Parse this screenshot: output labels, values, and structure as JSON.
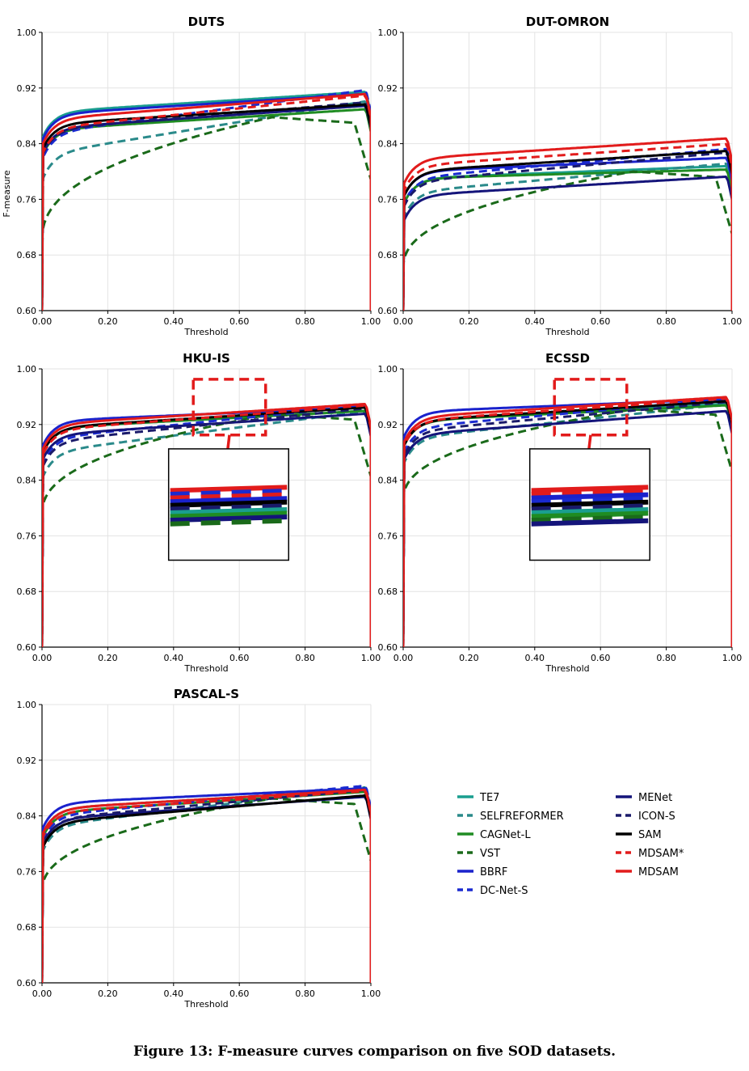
{
  "caption": "Figure 13: F-measure curves comparison on five SOD datasets.",
  "chart_data": {
    "type": "line",
    "xlabel": "Threshold",
    "ylabel": "F-measure",
    "xlim": [
      0,
      1
    ],
    "ylim": [
      0.6,
      1.0
    ],
    "xticks": [
      "0.00",
      "0.20",
      "0.40",
      "0.60",
      "0.80",
      "1.00"
    ],
    "yticks": [
      "0.60",
      "0.68",
      "0.76",
      "0.84",
      "0.92",
      "1.00"
    ],
    "grid": true,
    "methods": [
      {
        "name": "TE7",
        "color": "#1a9e8f",
        "dashed": false
      },
      {
        "name": "SELFREFORMER",
        "color": "#2a8a8a",
        "dashed": true
      },
      {
        "name": "CAGNet-L",
        "color": "#1f8c22",
        "dashed": false
      },
      {
        "name": "VST",
        "color": "#1a6a1a",
        "dashed": true
      },
      {
        "name": "BBRF",
        "color": "#1a22cc",
        "dashed": false
      },
      {
        "name": "DC-Net-S",
        "color": "#1a2ad0",
        "dashed": true
      },
      {
        "name": "MENet",
        "color": "#14147a",
        "dashed": false
      },
      {
        "name": "ICON-S",
        "color": "#1a1a6a",
        "dashed": true
      },
      {
        "name": "SAM",
        "color": "#000000",
        "dashed": false
      },
      {
        "name": "MDSAM*",
        "color": "#e21b1b",
        "dashed": true
      },
      {
        "name": "MDSAM",
        "color": "#e21b1b",
        "dashed": false
      }
    ],
    "panels": [
      {
        "title": "DUTS",
        "series": [
          {
            "name": "TE7",
            "start": 0.885,
            "end": 0.915
          },
          {
            "name": "SELFREFORMER",
            "start": 0.825,
            "end": 0.902
          },
          {
            "name": "CAGNet-L",
            "start": 0.86,
            "end": 0.89
          },
          {
            "name": "VST",
            "start": 0.7,
            "peak": 0.878
          },
          {
            "name": "BBRF",
            "start": 0.882,
            "end": 0.912
          },
          {
            "name": "DC-Net-S",
            "start": 0.855,
            "end": 0.918
          },
          {
            "name": "MENet",
            "start": 0.862,
            "end": 0.895
          },
          {
            "name": "ICON-S",
            "start": 0.86,
            "end": 0.9
          },
          {
            "name": "SAM",
            "start": 0.868,
            "end": 0.897
          },
          {
            "name": "MDSAM*",
            "start": 0.862,
            "end": 0.91
          },
          {
            "name": "MDSAM",
            "start": 0.875,
            "end": 0.912
          }
        ]
      },
      {
        "title": "DUT-OMRON",
        "series": [
          {
            "name": "TE7",
            "start": 0.79,
            "end": 0.808
          },
          {
            "name": "SELFREFORMER",
            "start": 0.77,
            "end": 0.812
          },
          {
            "name": "CAGNet-L",
            "start": 0.79,
            "end": 0.803
          },
          {
            "name": "VST",
            "start": 0.66,
            "peak": 0.8
          },
          {
            "name": "BBRF",
            "start": 0.8,
            "end": 0.82
          },
          {
            "name": "DC-Net-S",
            "start": 0.79,
            "end": 0.833
          },
          {
            "name": "MENet",
            "start": 0.765,
            "end": 0.793
          },
          {
            "name": "ICON-S",
            "start": 0.785,
            "end": 0.828
          },
          {
            "name": "SAM",
            "start": 0.8,
            "end": 0.83
          },
          {
            "name": "MDSAM*",
            "start": 0.808,
            "end": 0.84
          },
          {
            "name": "MDSAM",
            "start": 0.818,
            "end": 0.848
          }
        ]
      },
      {
        "title": "HKU-IS",
        "series": [
          {
            "name": "TE7",
            "start": 0.915,
            "end": 0.94
          },
          {
            "name": "SELFREFORMER",
            "start": 0.88,
            "end": 0.94
          },
          {
            "name": "CAGNet-L",
            "start": 0.915,
            "end": 0.94
          },
          {
            "name": "VST",
            "start": 0.79,
            "peak": 0.935
          },
          {
            "name": "BBRF",
            "start": 0.925,
            "end": 0.945
          },
          {
            "name": "DC-Net-S",
            "start": 0.9,
            "end": 0.948
          },
          {
            "name": "MENet",
            "start": 0.905,
            "end": 0.936
          },
          {
            "name": "ICON-S",
            "start": 0.895,
            "end": 0.944
          },
          {
            "name": "SAM",
            "start": 0.915,
            "end": 0.945
          },
          {
            "name": "MDSAM*",
            "start": 0.912,
            "end": 0.948
          },
          {
            "name": "MDSAM",
            "start": 0.92,
            "end": 0.95
          }
        ],
        "zoom_box": true
      },
      {
        "title": "ECSSD",
        "series": [
          {
            "name": "TE7",
            "start": 0.925,
            "end": 0.95
          },
          {
            "name": "SELFREFORMER",
            "start": 0.9,
            "end": 0.95
          },
          {
            "name": "CAGNet-L",
            "start": 0.925,
            "end": 0.948
          },
          {
            "name": "VST",
            "start": 0.81,
            "peak": 0.942
          },
          {
            "name": "BBRF",
            "start": 0.938,
            "end": 0.957
          },
          {
            "name": "DC-Net-S",
            "start": 0.915,
            "end": 0.957
          },
          {
            "name": "MENet",
            "start": 0.905,
            "end": 0.94
          },
          {
            "name": "ICON-S",
            "start": 0.91,
            "end": 0.953
          },
          {
            "name": "SAM",
            "start": 0.925,
            "end": 0.954
          },
          {
            "name": "MDSAM*",
            "start": 0.925,
            "end": 0.958
          },
          {
            "name": "MDSAM",
            "start": 0.93,
            "end": 0.96
          }
        ],
        "zoom_box": true
      },
      {
        "title": "PASCAL-S",
        "series": [
          {
            "name": "TE7",
            "start": 0.85,
            "end": 0.878
          },
          {
            "name": "SELFREFORMER",
            "start": 0.825,
            "end": 0.882
          },
          {
            "name": "CAGNet-L",
            "start": 0.845,
            "end": 0.875
          },
          {
            "name": "VST",
            "start": 0.73,
            "peak": 0.865
          },
          {
            "name": "BBRF",
            "start": 0.858,
            "end": 0.88
          },
          {
            "name": "DC-Net-S",
            "start": 0.84,
            "end": 0.884
          },
          {
            "name": "MENet",
            "start": 0.835,
            "end": 0.868
          },
          {
            "name": "ICON-S",
            "start": 0.835,
            "end": 0.878
          },
          {
            "name": "SAM",
            "start": 0.83,
            "end": 0.87
          },
          {
            "name": "MDSAM*",
            "start": 0.845,
            "end": 0.876
          },
          {
            "name": "MDSAM",
            "start": 0.85,
            "end": 0.878
          }
        ]
      }
    ]
  }
}
